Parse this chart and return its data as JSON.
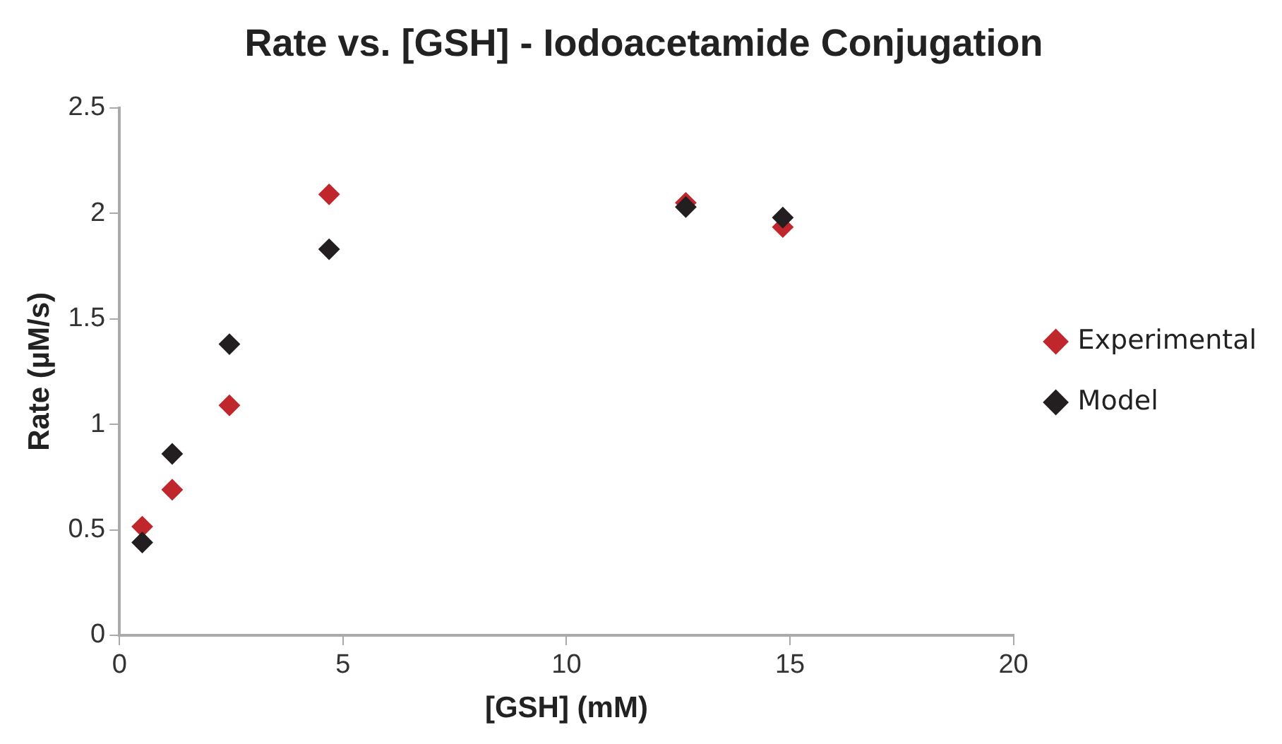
{
  "chart_data": {
    "type": "scatter",
    "title": "Rate vs. [GSH] - Iodoacetamide Conjugation",
    "xlabel": "[GSH] (mM)",
    "ylabel": "Rate (µM/s)",
    "series": [
      {
        "name": "Experimental",
        "color": "#c0272d",
        "x": [
          0.51,
          1.18,
          2.46,
          4.69,
          12.67,
          14.84
        ],
        "values": [
          0.515,
          0.69,
          1.09,
          2.09,
          2.05,
          1.935
        ]
      },
      {
        "name": "Model",
        "color": "#231f20",
        "x": [
          0.51,
          1.18,
          2.46,
          4.69,
          12.67,
          14.84
        ],
        "values": [
          0.44,
          0.86,
          1.38,
          1.83,
          2.03,
          1.98
        ]
      }
    ],
    "xlim": [
      0,
      20
    ],
    "xticks": [
      0,
      5,
      10,
      15,
      20
    ],
    "ylim": [
      0,
      2.5
    ],
    "yticks": [
      0,
      0.5,
      1,
      1.5,
      2,
      2.5
    ],
    "grid": false,
    "legend": "right",
    "marker": "diamond"
  }
}
